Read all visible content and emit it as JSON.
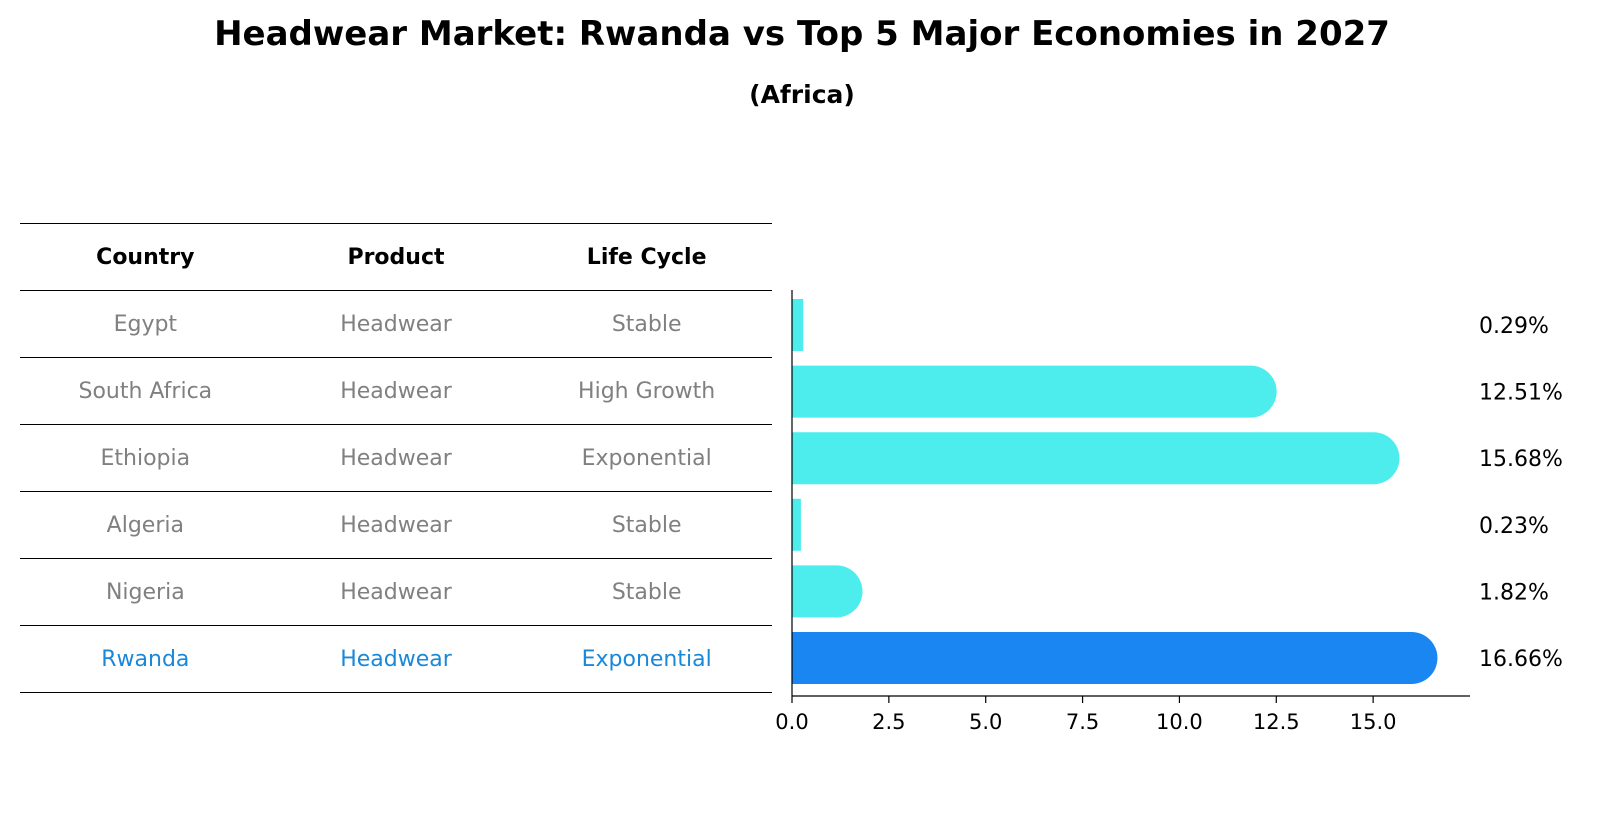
{
  "chart_data": {
    "type": "bar",
    "title": "Headwear Market: Rwanda vs Top 5 Major Economies in 2027",
    "subtitle": "(Africa)",
    "orientation": "horizontal",
    "categories": [
      "Egypt",
      "South Africa",
      "Ethiopia",
      "Algeria",
      "Nigeria",
      "Rwanda"
    ],
    "values": [
      0.29,
      12.51,
      15.68,
      0.23,
      1.82,
      16.66
    ],
    "value_labels": [
      "0.29%",
      "12.51%",
      "15.68%",
      "0.23%",
      "1.82%",
      "16.66%"
    ],
    "highlight": "Rwanda",
    "xlim": [
      0,
      17.5
    ],
    "xticks": [
      0.0,
      2.5,
      5.0,
      7.5,
      10.0,
      12.5,
      15.0
    ],
    "xtick_labels": [
      "0.0",
      "2.5",
      "5.0",
      "7.5",
      "10.0",
      "12.5",
      "15.0"
    ],
    "grid": false,
    "colors": {
      "bar": "#4deded",
      "highlight_bar": "#1a86f2"
    }
  },
  "table": {
    "headers": [
      "Country",
      "Product",
      "Life Cycle"
    ],
    "rows": [
      [
        "Egypt",
        "Headwear",
        "Stable"
      ],
      [
        "South Africa",
        "Headwear",
        "High Growth"
      ],
      [
        "Ethiopia",
        "Headwear",
        "Exponential"
      ],
      [
        "Algeria",
        "Headwear",
        "Stable"
      ],
      [
        "Nigeria",
        "Headwear",
        "Stable"
      ],
      [
        "Rwanda",
        "Headwear",
        "Exponential"
      ]
    ],
    "colors": {
      "text": "#808080",
      "highlight_text": "#1a88d8"
    }
  }
}
